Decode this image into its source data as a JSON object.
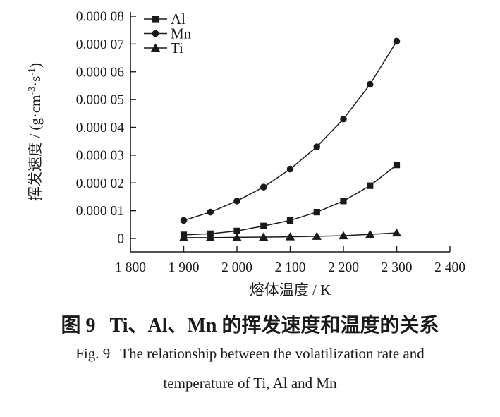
{
  "figure": {
    "number_zh": "图 9",
    "title_zh": "Ti、Al、Mn 的挥发速度和温度的关系",
    "number_en": "Fig. 9",
    "title_en_line1": "The relationship between the volatilization rate and",
    "title_en_line2": "temperature of Ti, Al and Mn"
  },
  "chart_data": {
    "type": "line",
    "title": "",
    "xlabel": "熔体温度 / K",
    "ylabel": "挥发速度 / (g·cm⁻³·s⁻¹)",
    "ylabel_parts": [
      {
        "t": "挥发速度 / (g·cm"
      },
      {
        "t": "-3",
        "sup": true
      },
      {
        "t": "·s"
      },
      {
        "t": "-1",
        "sup": true
      },
      {
        "t": ")"
      }
    ],
    "xlim": [
      1800,
      2400
    ],
    "ylim": [
      0,
      8e-05
    ],
    "grid": false,
    "legend_position": "top-left-inside",
    "color": "#1a1a1a",
    "x_ticks": [
      1800,
      1900,
      2000,
      2100,
      2200,
      2300,
      2400
    ],
    "x_tick_labels": [
      "1 800",
      "1 900",
      "2 000",
      "2 100",
      "2 200",
      "2 300",
      "2 400"
    ],
    "y_ticks": [
      0,
      1e-05,
      2e-05,
      3e-05,
      4e-05,
      5e-05,
      6e-05,
      7e-05,
      8e-05
    ],
    "y_tick_labels": [
      "0",
      "0.000 01",
      "0.000 02",
      "0.000 03",
      "0.000 04",
      "0.000 05",
      "0.000 06",
      "0.000 07",
      "0.000 08"
    ],
    "x": [
      1900,
      1950,
      2000,
      2050,
      2100,
      2150,
      2200,
      2250,
      2300
    ],
    "series": [
      {
        "name": "Al",
        "marker": "square",
        "values": [
          1.3e-06,
          1.7e-06,
          2.7e-06,
          4.5e-06,
          6.5e-06,
          9.5e-06,
          1.35e-05,
          1.9e-05,
          2.65e-05
        ]
      },
      {
        "name": "Mn",
        "marker": "circle",
        "values": [
          6.5e-06,
          9.5e-06,
          1.35e-05,
          1.85e-05,
          2.5e-05,
          3.3e-05,
          4.3e-05,
          5.55e-05,
          7.1e-05
        ]
      },
      {
        "name": "Ti",
        "marker": "triangle",
        "values": [
          3e-07,
          3e-07,
          4e-07,
          5e-07,
          6e-07,
          8e-07,
          1e-06,
          1.5e-06,
          2e-06
        ]
      }
    ]
  }
}
